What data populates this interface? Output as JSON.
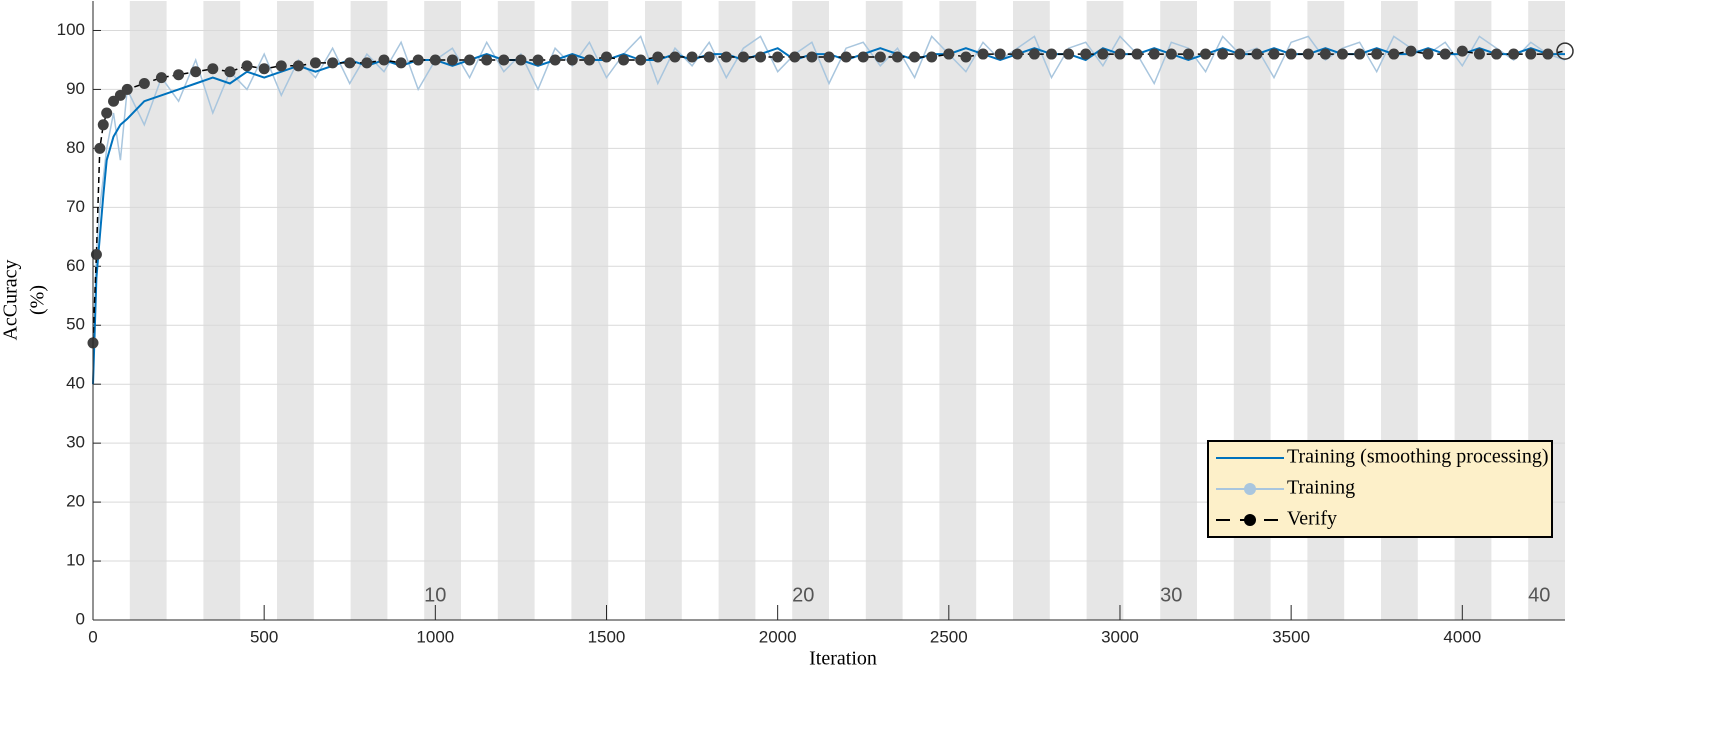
{
  "chart_data": {
    "type": "line",
    "xlabel": "Iteration",
    "ylabel": [
      "AcCuracy",
      "(%)"
    ],
    "xlim": [
      0,
      4300
    ],
    "ylim": [
      0,
      105
    ],
    "xticks": [
      0,
      500,
      1000,
      1500,
      2000,
      2500,
      3000,
      3500,
      4000
    ],
    "yticks": [
      0,
      10,
      20,
      30,
      40,
      50,
      60,
      70,
      80,
      90,
      100
    ],
    "grid": true,
    "legend": "southeast",
    "epoch_length": 107.5,
    "epochs": 40,
    "epoch_ticks": [
      10,
      20,
      30,
      40
    ],
    "band_color": "#e6e6e6",
    "x": [
      0,
      10,
      20,
      30,
      40,
      60,
      80,
      100,
      150,
      200,
      250,
      300,
      350,
      400,
      450,
      500,
      550,
      600,
      650,
      700,
      750,
      800,
      850,
      900,
      950,
      1000,
      1050,
      1100,
      1150,
      1200,
      1250,
      1300,
      1350,
      1400,
      1450,
      1500,
      1550,
      1600,
      1650,
      1700,
      1750,
      1800,
      1850,
      1900,
      1950,
      2000,
      2050,
      2100,
      2150,
      2200,
      2250,
      2300,
      2350,
      2400,
      2450,
      2500,
      2550,
      2600,
      2650,
      2700,
      2750,
      2800,
      2850,
      2900,
      2950,
      3000,
      3050,
      3100,
      3150,
      3200,
      3250,
      3300,
      3350,
      3400,
      3450,
      3500,
      3550,
      3600,
      3650,
      3700,
      3750,
      3800,
      3850,
      3900,
      3950,
      4000,
      4050,
      4100,
      4150,
      4200,
      4250,
      4300
    ],
    "series": [
      {
        "name": "Training",
        "color": "#a9c6de",
        "style": "raw",
        "values": [
          40,
          62,
          70,
          75,
          80,
          86,
          78,
          90,
          84,
          92,
          88,
          95,
          86,
          93,
          90,
          96,
          89,
          95,
          92,
          97,
          91,
          96,
          93,
          98,
          90,
          95,
          97,
          92,
          98,
          93,
          96,
          90,
          97,
          94,
          98,
          92,
          96,
          99,
          91,
          97,
          94,
          98,
          92,
          97,
          99,
          93,
          96,
          98,
          91,
          97,
          98,
          94,
          97,
          92,
          99,
          96,
          93,
          98,
          95,
          97,
          99,
          92,
          97,
          98,
          94,
          99,
          96,
          91,
          98,
          97,
          93,
          99,
          96,
          97,
          92,
          98,
          99,
          95,
          97,
          98,
          93,
          99,
          97,
          96,
          98,
          94,
          99,
          97,
          95,
          98,
          96,
          95
        ]
      },
      {
        "name": "Training (smoothing processing)",
        "color": "#0072bd",
        "style": "smooth",
        "values": [
          40,
          58,
          65,
          72,
          78,
          82,
          84,
          85,
          88,
          89,
          90,
          91,
          92,
          91,
          93,
          92,
          93,
          94,
          93,
          94,
          95,
          94,
          95,
          94,
          95,
          95,
          94,
          95,
          96,
          95,
          95,
          94,
          95,
          96,
          95,
          95,
          96,
          95,
          95,
          96,
          95,
          96,
          96,
          95,
          96,
          97,
          95,
          96,
          96,
          95,
          96,
          97,
          96,
          95,
          96,
          96,
          97,
          96,
          95,
          96,
          97,
          96,
          96,
          95,
          97,
          96,
          96,
          97,
          96,
          95,
          96,
          97,
          96,
          96,
          97,
          96,
          96,
          97,
          96,
          96,
          97,
          96,
          96,
          97,
          96,
          96,
          97,
          96,
          96,
          97,
          96,
          96
        ]
      },
      {
        "name": "Verify",
        "color": "#404040",
        "style": "verify",
        "values": [
          47,
          62,
          80,
          84,
          86,
          88,
          89,
          90,
          91,
          92,
          92.5,
          93,
          93.5,
          93,
          94,
          93.5,
          94,
          94,
          94.5,
          94.5,
          94.5,
          94.5,
          95,
          94.5,
          95,
          95,
          95,
          95,
          95,
          95,
          95,
          95,
          95,
          95,
          95,
          95.5,
          95,
          95,
          95.5,
          95.5,
          95.5,
          95.5,
          95.5,
          95.5,
          95.5,
          95.5,
          95.5,
          95.5,
          95.5,
          95.5,
          95.5,
          95.5,
          95.5,
          95.5,
          95.5,
          96,
          95.5,
          96,
          96,
          96,
          96,
          96,
          96,
          96,
          96,
          96,
          96,
          96,
          96,
          96,
          96,
          96,
          96,
          96,
          96,
          96,
          96,
          96,
          96,
          96,
          96,
          96,
          96.5,
          96,
          96,
          96.5,
          96,
          96,
          96,
          96,
          96,
          96.5
        ]
      }
    ]
  }
}
